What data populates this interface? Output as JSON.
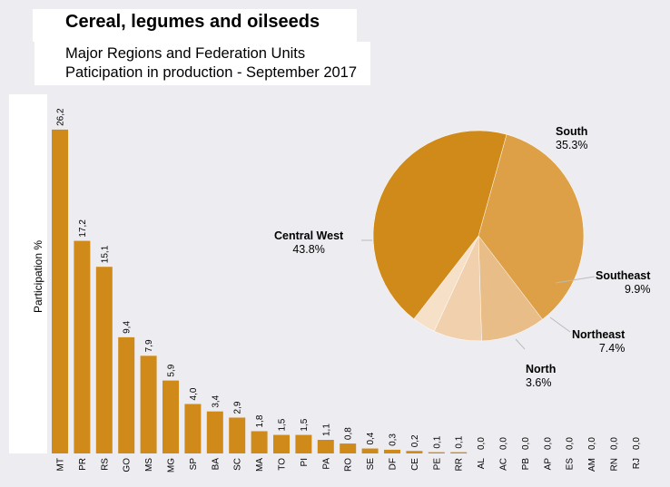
{
  "header": {
    "title": "Cereal, legumes and oilseeds",
    "subtitle_1": "Major Regions and Federation Units",
    "subtitle_2": "Paticipation in production - September 2017"
  },
  "chart_data": [
    {
      "type": "bar",
      "ylabel": "Participation %",
      "categories": [
        "MT",
        "PR",
        "RS",
        "GO",
        "MS",
        "MG",
        "SP",
        "BA",
        "SC",
        "MA",
        "TO",
        "PI",
        "PA",
        "RO",
        "SE",
        "DF",
        "CE",
        "PE",
        "RR",
        "AL",
        "AC",
        "PB",
        "AP",
        "ES",
        "AM",
        "RN",
        "RJ"
      ],
      "values": [
        26.2,
        17.2,
        15.1,
        9.4,
        7.9,
        5.9,
        4.0,
        3.4,
        2.9,
        1.8,
        1.5,
        1.5,
        1.1,
        0.8,
        0.4,
        0.3,
        0.2,
        0.1,
        0.1,
        0.0,
        0.0,
        0.0,
        0.0,
        0.0,
        0.0,
        0.0,
        0.0
      ],
      "value_labels": [
        "26,2",
        "17,2",
        "15,1",
        "9,4",
        "7,9",
        "5,9",
        "4,0",
        "3,4",
        "2,9",
        "1,8",
        "1,5",
        "1,5",
        "1,1",
        "0,8",
        "0,4",
        "0,3",
        "0,2",
        "0,1",
        "0,1",
        "0,0",
        "0,0",
        "0,0",
        "0,0",
        "0,0",
        "0,0",
        "0,0",
        "0,0"
      ],
      "ylim": [
        0,
        27
      ],
      "color": "#d08a1a"
    },
    {
      "type": "pie",
      "slices": [
        {
          "name": "South",
          "label": "35.3%",
          "value": 35.3,
          "color": "#dea046"
        },
        {
          "name": "Southeast",
          "label": "9.9%",
          "value": 9.9,
          "color": "#e9bd87"
        },
        {
          "name": "Northeast",
          "label": "7.4%",
          "value": 7.4,
          "color": "#f0d0ad"
        },
        {
          "name": "North",
          "label": "3.6%",
          "value": 3.6,
          "color": "#f6e1c8"
        },
        {
          "name": "Central West",
          "label": "43.8%",
          "value": 43.8,
          "color": "#d08a1a"
        }
      ]
    }
  ]
}
